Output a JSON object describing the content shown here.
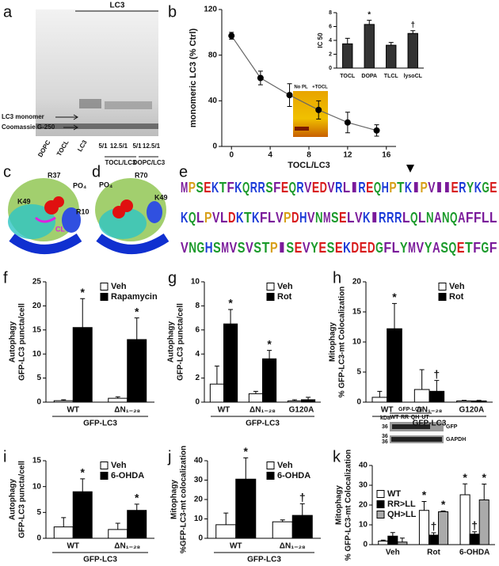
{
  "panel_labels": [
    "a",
    "b",
    "c",
    "d",
    "e",
    "f",
    "g",
    "h",
    "i",
    "j",
    "k"
  ],
  "gel": {
    "title": "LC3",
    "bands": [
      "LC3 monomer",
      "Coomassie G-250"
    ],
    "lanes": [
      "DOPC",
      "TOCL",
      "LC3",
      "5/1",
      "12.5/1",
      "5/1",
      "12.5/1"
    ],
    "groups": [
      "TOCL/LC3",
      "DOPC/LC3"
    ]
  },
  "structures": [
    {
      "labels": [
        "R37",
        "PO₄",
        "K49",
        "R10",
        "CL"
      ]
    },
    {
      "labels": [
        "PO₄",
        "R70",
        "K49"
      ]
    }
  ],
  "sequence_logo": {
    "rows": [
      "MPSEKTFKQRRSFEQRVEDVRLIREQHPTKIPVIIERYKGE",
      "KQLPVLDKTKFLVPDHVNMSELVKIRRRLQLNANQAFFLL",
      "VNGHSMVSVSTPISEVYESEKDEDGFLYMVYASQETFGF"
    ]
  },
  "blot": {
    "title": "GFP-LC3",
    "unit": "kDa",
    "lanes": [
      "WT",
      "RR",
      "QH",
      "UT"
    ],
    "markers": [
      36,
      36,
      36
    ],
    "bands": [
      "GFP",
      "GAPDH"
    ]
  },
  "chart_data": [
    {
      "type": "line",
      "xlabel": "TOCL/LC3",
      "ylabel": "monomeric LC3 (% Ctrl)",
      "x": [
        0,
        3,
        6,
        9,
        12,
        15
      ],
      "series": [
        {
          "color": "#000000",
          "values": [
            97,
            60,
            45,
            32,
            21,
            14
          ],
          "errors": [
            3,
            6,
            10,
            8,
            9,
            5
          ]
        }
      ],
      "xlim": [
        -1,
        17
      ],
      "xticks": [
        0,
        4,
        8,
        12,
        16
      ],
      "ylim": [
        0,
        120
      ],
      "yticks": [
        0,
        40,
        80,
        120
      ],
      "inset_labels": [
        "No PL",
        "+TOCL"
      ]
    },
    {
      "type": "bar",
      "ylabel": "IC 50",
      "categories": [
        "TOCL",
        "DOPA",
        "TLCL",
        "lysoCL"
      ],
      "series": [
        {
          "color": "#333333",
          "values": [
            3.5,
            6.3,
            3.3,
            5.0
          ],
          "errors": [
            0.8,
            0.6,
            0.4,
            0.4
          ],
          "sig": [
            null,
            "*",
            null,
            "†"
          ]
        }
      ],
      "ylim": [
        0,
        8
      ],
      "yticks": [
        0,
        2,
        4,
        6,
        8
      ]
    },
    {
      "type": "bar",
      "ylabel": [
        "Autophagy",
        "GFP-LC3 puncta/cell"
      ],
      "categories": [
        "WT",
        "ΔN₁₋₂₈"
      ],
      "group_label": "GFP-LC3",
      "legend": "top-right",
      "series": [
        {
          "name": "Veh",
          "color": "#ffffff",
          "values": [
            0.3,
            0.8
          ],
          "errors": [
            0.2,
            0.3
          ],
          "sig": [
            null,
            null
          ]
        },
        {
          "name": "Rapamycin",
          "color": "#000000",
          "values": [
            15.5,
            13
          ],
          "errors": [
            6,
            4.5
          ],
          "sig": [
            "*",
            "*"
          ]
        }
      ],
      "ylim": [
        0,
        25
      ],
      "yticks": [
        0,
        5,
        10,
        15,
        20,
        25
      ]
    },
    {
      "type": "bar",
      "ylabel": [
        "Autophagy",
        "GFP-LC3 puncta/cell"
      ],
      "categories": [
        "WT",
        "ΔN₁₋₂₈",
        "G120A"
      ],
      "group_label": "GFP-LC3",
      "legend": "top-right",
      "series": [
        {
          "name": "Veh",
          "color": "#ffffff",
          "values": [
            1.5,
            0.7,
            0.1
          ],
          "errors": [
            1.5,
            0.2,
            0.1
          ],
          "sig": [
            null,
            null,
            null
          ]
        },
        {
          "name": "Rot",
          "color": "#000000",
          "values": [
            6.5,
            3.6,
            0.2
          ],
          "errors": [
            1.2,
            0.7,
            0.2
          ],
          "sig": [
            "*",
            "*",
            null
          ]
        }
      ],
      "ylim": [
        0,
        10
      ],
      "yticks": [
        0,
        2,
        4,
        6,
        8,
        10
      ]
    },
    {
      "type": "bar",
      "ylabel": [
        "Mitophagy",
        "% GFP-LC3-mt Colocalization"
      ],
      "categories": [
        "WT",
        "ΔN₁₋₂₈",
        "G120A"
      ],
      "group_label": "GFP-LC3",
      "legend": "top-right",
      "series": [
        {
          "name": "Veh",
          "color": "#ffffff",
          "values": [
            0.8,
            2.1,
            0.2
          ],
          "errors": [
            1,
            3.3,
            0.1
          ],
          "sig": [
            null,
            null,
            null
          ]
        },
        {
          "name": "Rot",
          "color": "#000000",
          "values": [
            12.2,
            1.8,
            0.2
          ],
          "errors": [
            4.2,
            1.8,
            0.1
          ],
          "sig": [
            "*",
            "†",
            null
          ]
        }
      ],
      "ylim": [
        0,
        20
      ],
      "yticks": [
        0,
        5,
        10,
        15,
        20
      ]
    },
    {
      "type": "bar",
      "ylabel": [
        "Autophagy",
        "GFP-LC3 puncta/cell"
      ],
      "categories": [
        "WT",
        "ΔN₁₋₂₈"
      ],
      "group_label": "GFP-LC3",
      "legend": "top-right",
      "series": [
        {
          "name": "Veh",
          "color": "#ffffff",
          "values": [
            2.2,
            1.7
          ],
          "errors": [
            1.8,
            1.2
          ],
          "sig": [
            null,
            null
          ]
        },
        {
          "name": "6-OHDA",
          "color": "#000000",
          "values": [
            9,
            5.4
          ],
          "errors": [
            2.5,
            1.2
          ],
          "sig": [
            "*",
            "*"
          ]
        }
      ],
      "ylim": [
        0,
        15
      ],
      "yticks": [
        0,
        5,
        10,
        15
      ]
    },
    {
      "type": "bar",
      "ylabel": [
        "Mitophagy",
        "%GFP-LC3-mt colocalization"
      ],
      "categories": [
        "WT",
        "ΔN₁₋₂₈"
      ],
      "group_label": "GFP-LC3",
      "legend": "top-right",
      "series": [
        {
          "name": "Veh",
          "color": "#ffffff",
          "values": [
            7,
            8.5
          ],
          "errors": [
            6,
            1
          ],
          "sig": [
            null,
            null
          ]
        },
        {
          "name": "6-OHDA",
          "color": "#000000",
          "values": [
            30.5,
            11.8
          ],
          "errors": [
            11,
            6
          ],
          "sig": [
            "*",
            "†"
          ]
        }
      ],
      "ylim": [
        0,
        40
      ],
      "yticks": [
        0,
        10,
        20,
        30,
        40
      ]
    },
    {
      "type": "bar",
      "ylabel": [
        "Mitophagy",
        "% GFP-LC3-mt Colocalization"
      ],
      "categories": [
        "Veh",
        "Rot",
        "6-OHDA"
      ],
      "legend": "top-left",
      "series": [
        {
          "name": "WT",
          "color": "#ffffff",
          "values": [
            1.8,
            17.3,
            25.2
          ],
          "errors": [
            0.5,
            4.5,
            5.5
          ],
          "sig": [
            null,
            "*",
            "*"
          ]
        },
        {
          "name": "RR>LL",
          "color": "#000000",
          "values": [
            4.3,
            4.8,
            5.3
          ],
          "errors": [
            1.8,
            1.2,
            1.2
          ],
          "sig": [
            null,
            "†",
            "†"
          ]
        },
        {
          "name": "QH>LL",
          "color": "#aaaaaa",
          "values": [
            1.3,
            16.6,
            22.6
          ],
          "errors": [
            2,
            0.4,
            8
          ],
          "sig": [
            null,
            "*",
            "*"
          ]
        }
      ],
      "ylim": [
        0,
        40
      ],
      "yticks": [
        0,
        10,
        20,
        30,
        40
      ]
    }
  ]
}
